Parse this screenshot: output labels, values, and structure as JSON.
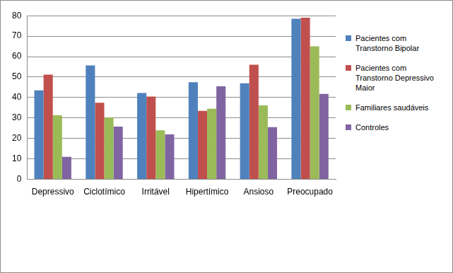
{
  "chart_data": {
    "type": "bar",
    "categories": [
      "Depressivo",
      "Ciclotímico",
      "Irritável",
      "Hipertímico",
      "Ansioso",
      "Preocupado"
    ],
    "series": [
      {
        "name": "Pacientes com Transtorno Bipolar",
        "color": "#4f81bd",
        "values": [
          43.5,
          55.7,
          42.2,
          47.5,
          47,
          78.5
        ]
      },
      {
        "name": "Pacientes com Transtorno Depressivo Maior",
        "color": "#c0504d",
        "values": [
          51.2,
          37.5,
          40.5,
          33.5,
          56,
          79
        ]
      },
      {
        "name": "Familiares saudáveis",
        "color": "#9bbb59",
        "values": [
          31.3,
          30.2,
          24,
          34.5,
          36.2,
          65
        ]
      },
      {
        "name": "Controles",
        "color": "#8064a2",
        "values": [
          11,
          25.8,
          22,
          45.5,
          25.5,
          41.8
        ]
      }
    ],
    "ylim": [
      0,
      80
    ],
    "yticks": [
      0,
      10,
      20,
      30,
      40,
      50,
      60,
      70,
      80
    ],
    "grid": true,
    "legend": "right"
  }
}
